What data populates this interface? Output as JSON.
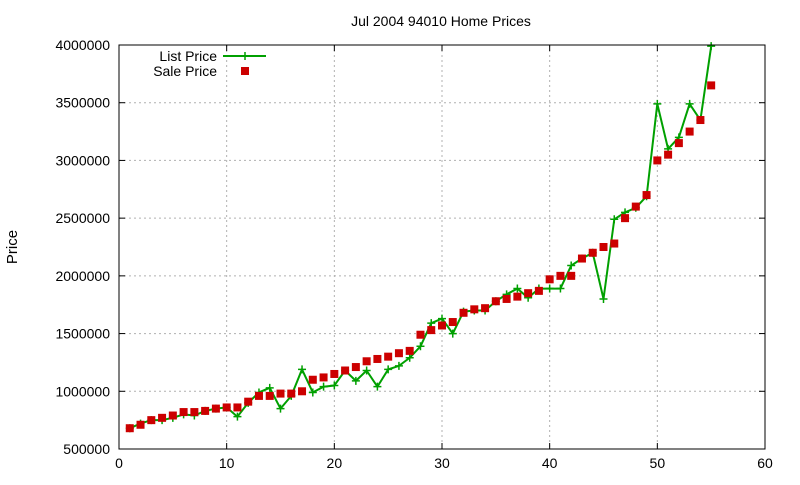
{
  "chart_data": {
    "type": "line",
    "title": "Jul 2004 94010 Home Prices",
    "xlabel": "",
    "ylabel": "Price",
    "xlim": [
      0,
      60
    ],
    "ylim": [
      500000,
      4000000
    ],
    "xticks": [
      0,
      10,
      20,
      30,
      40,
      50,
      60
    ],
    "yticks": [
      500000,
      1000000,
      1500000,
      2000000,
      2500000,
      3000000,
      3500000,
      4000000
    ],
    "xtick_labels": [
      "0",
      "10",
      "20",
      "30",
      "40",
      "50",
      "60"
    ],
    "ytick_labels": [
      "500000",
      "1000000",
      "1500000",
      "2000000",
      "2500000",
      "3000000",
      "3500000",
      "4000000"
    ],
    "grid": true,
    "legend_position": "top-left",
    "series": [
      {
        "name": "List Price",
        "style": "line-plus",
        "color": "#00a000",
        "x": [
          1,
          2,
          3,
          4,
          5,
          6,
          7,
          8,
          9,
          10,
          11,
          12,
          13,
          14,
          15,
          16,
          17,
          18,
          19,
          20,
          21,
          22,
          23,
          24,
          25,
          26,
          27,
          28,
          29,
          30,
          31,
          32,
          33,
          34,
          35,
          36,
          37,
          38,
          39,
          40,
          41,
          42,
          43,
          44,
          45,
          46,
          47,
          48,
          49,
          50,
          51,
          52,
          53,
          54,
          55
        ],
        "values": [
          680000,
          720000,
          750000,
          750000,
          770000,
          800000,
          790000,
          830000,
          850000,
          860000,
          780000,
          900000,
          990000,
          1030000,
          850000,
          960000,
          1190000,
          990000,
          1040000,
          1050000,
          1180000,
          1090000,
          1180000,
          1040000,
          1190000,
          1220000,
          1290000,
          1390000,
          1590000,
          1630000,
          1500000,
          1690000,
          1700000,
          1700000,
          1780000,
          1840000,
          1890000,
          1810000,
          1890000,
          1890000,
          1890000,
          2090000,
          2150000,
          2200000,
          1800000,
          2490000,
          2550000,
          2590000,
          2690000,
          3490000,
          3100000,
          3200000,
          3490000,
          3350000,
          3990000
        ]
      },
      {
        "name": "Sale Price",
        "style": "square",
        "color": "#cc0000",
        "x": [
          1,
          2,
          3,
          4,
          5,
          6,
          7,
          8,
          9,
          10,
          11,
          12,
          13,
          14,
          15,
          16,
          17,
          18,
          19,
          20,
          21,
          22,
          23,
          24,
          25,
          26,
          27,
          28,
          29,
          30,
          31,
          32,
          33,
          34,
          35,
          36,
          37,
          38,
          39,
          40,
          41,
          42,
          43,
          44,
          45,
          46,
          47,
          48,
          49,
          50,
          51,
          52,
          53,
          54,
          55
        ],
        "values": [
          680000,
          710000,
          750000,
          770000,
          790000,
          820000,
          820000,
          830000,
          850000,
          860000,
          860000,
          910000,
          960000,
          960000,
          980000,
          980000,
          1000000,
          1100000,
          1120000,
          1150000,
          1180000,
          1210000,
          1260000,
          1280000,
          1300000,
          1330000,
          1350000,
          1490000,
          1530000,
          1570000,
          1600000,
          1680000,
          1710000,
          1720000,
          1780000,
          1800000,
          1820000,
          1850000,
          1870000,
          1970000,
          2000000,
          2000000,
          2150000,
          2200000,
          2250000,
          2280000,
          2500000,
          2600000,
          2700000,
          3000000,
          3050000,
          3150000,
          3250000,
          3350000,
          3650000
        ]
      }
    ]
  }
}
